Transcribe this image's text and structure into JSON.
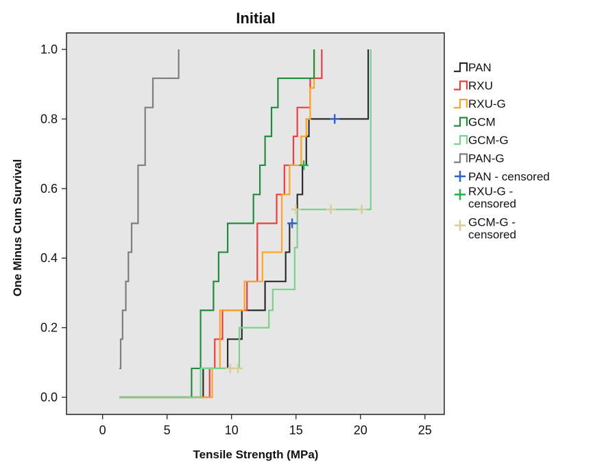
{
  "chart_data": {
    "type": "line",
    "title": "Initial",
    "xlabel": "Tensile Strength (MPa)",
    "ylabel": "One Minus Cum Survival",
    "xlim": [
      -2.8,
      26.5
    ],
    "ylim": [
      -0.06,
      1.0
    ],
    "x_ticks": [
      0,
      5,
      10,
      15,
      20,
      25
    ],
    "x_tick_labels": [
      "0",
      "5",
      "10",
      "15",
      "20",
      "25"
    ],
    "y_ticks": [
      0.0,
      0.2,
      0.4,
      0.6,
      0.8,
      1.0
    ],
    "y_tick_labels": [
      "0.0",
      "0.2",
      "0.4",
      "0.6",
      "0.8",
      "1.0"
    ],
    "grid": false,
    "legend_position": "right",
    "colors": {
      "plot_background": "#e6e6e6",
      "PAN": "#2b2b2b",
      "RXU": "#f03c3c",
      "RXU-G": "#ffa420",
      "GCM": "#1e8c3c",
      "GCM-G": "#78d28c",
      "PAN-G": "#7d7d7d",
      "PAN-censored": "#2f5fd0",
      "RXU-G-censored": "#24b24a",
      "GCM-G-censored": "#d8cc98"
    },
    "series": [
      {
        "name": "PAN",
        "color": "#2b2b2b",
        "start": 1.3,
        "steps": [
          [
            7.8,
            0.083
          ],
          [
            9.7,
            0.167
          ],
          [
            10.8,
            0.25
          ],
          [
            12.6,
            0.333
          ],
          [
            14.2,
            0.417
          ],
          [
            14.5,
            0.5
          ],
          [
            15.1,
            0.583
          ],
          [
            15.5,
            0.667
          ],
          [
            15.8,
            0.75
          ],
          [
            16.0,
            0.8
          ],
          [
            20.6,
            1.0
          ]
        ],
        "end": 20.6
      },
      {
        "name": "RXU",
        "color": "#f03c3c",
        "start": 1.3,
        "steps": [
          [
            8.3,
            0.083
          ],
          [
            8.7,
            0.167
          ],
          [
            9.3,
            0.25
          ],
          [
            11.2,
            0.333
          ],
          [
            12.0,
            0.5
          ],
          [
            13.5,
            0.583
          ],
          [
            14.1,
            0.667
          ],
          [
            14.8,
            0.75
          ],
          [
            15.1,
            0.833
          ],
          [
            16.1,
            0.917
          ],
          [
            17.0,
            1.0
          ]
        ],
        "end": 17.0
      },
      {
        "name": "RXU-G",
        "color": "#ffa420",
        "start": 1.3,
        "steps": [
          [
            8.5,
            0.083
          ],
          [
            9.1,
            0.25
          ],
          [
            11.0,
            0.333
          ],
          [
            12.4,
            0.417
          ],
          [
            13.9,
            0.583
          ],
          [
            14.5,
            0.667
          ],
          [
            15.4,
            0.75
          ],
          [
            15.8,
            0.8
          ],
          [
            16.1,
            0.889
          ],
          [
            16.4,
            1.0
          ]
        ],
        "end": 16.4
      },
      {
        "name": "GCM",
        "color": "#1e8c3c",
        "start": 1.3,
        "steps": [
          [
            6.9,
            0.083
          ],
          [
            7.6,
            0.25
          ],
          [
            8.6,
            0.333
          ],
          [
            9.0,
            0.417
          ],
          [
            9.7,
            0.5
          ],
          [
            11.7,
            0.583
          ],
          [
            12.2,
            0.667
          ],
          [
            12.6,
            0.75
          ],
          [
            13.1,
            0.833
          ],
          [
            13.6,
            0.917
          ],
          [
            16.4,
            1.0
          ]
        ],
        "end": 16.4
      },
      {
        "name": "GCM-G",
        "color": "#78d28c",
        "start": 1.3,
        "steps": [
          [
            7.6,
            0.083
          ],
          [
            10.6,
            0.2
          ],
          [
            12.9,
            0.25
          ],
          [
            13.2,
            0.31
          ],
          [
            14.9,
            0.43
          ],
          [
            15.1,
            0.54
          ],
          [
            20.8,
            1.0
          ]
        ],
        "end": 20.8
      },
      {
        "name": "PAN-G",
        "color": "#7d7d7d",
        "start": 1.3,
        "start_y": 0.083,
        "steps": [
          [
            1.4,
            0.167
          ],
          [
            1.55,
            0.25
          ],
          [
            1.8,
            0.333
          ],
          [
            2.0,
            0.417
          ],
          [
            2.25,
            0.5
          ],
          [
            2.75,
            0.667
          ],
          [
            3.3,
            0.833
          ],
          [
            3.9,
            0.917
          ],
          [
            5.9,
            1.0
          ]
        ],
        "end": 5.9
      }
    ],
    "censored": [
      {
        "name": "PAN - censored",
        "color": "#2f5fd0",
        "points": [
          [
            18.0,
            0.8
          ],
          [
            14.7,
            0.5
          ]
        ]
      },
      {
        "name": "RXU-G - censored",
        "color": "#24b24a",
        "points": [
          [
            15.6,
            0.667
          ]
        ]
      },
      {
        "name": "GCM-G - censored",
        "color": "#d8cc98",
        "points": [
          [
            9.9,
            0.083
          ],
          [
            10.5,
            0.083
          ],
          [
            15.0,
            0.54
          ],
          [
            17.7,
            0.54
          ],
          [
            20.1,
            0.54
          ]
        ]
      }
    ],
    "legend": [
      {
        "label": "PAN",
        "kind": "step",
        "color": "#2b2b2b"
      },
      {
        "label": "RXU",
        "kind": "step",
        "color": "#f03c3c"
      },
      {
        "label": "RXU-G",
        "kind": "step",
        "color": "#ffa420"
      },
      {
        "label": "GCM",
        "kind": "step",
        "color": "#1e8c3c"
      },
      {
        "label": "GCM-G",
        "kind": "step",
        "color": "#78d28c"
      },
      {
        "label": "PAN-G",
        "kind": "step",
        "color": "#7d7d7d"
      },
      {
        "label": "PAN - censored",
        "kind": "plus",
        "color": "#2f5fd0"
      },
      {
        "label": "RXU-G - censored",
        "kind": "plus",
        "color": "#24b24a"
      },
      {
        "label": "GCM-G - censored",
        "kind": "plus",
        "color": "#d8cc98"
      }
    ]
  }
}
